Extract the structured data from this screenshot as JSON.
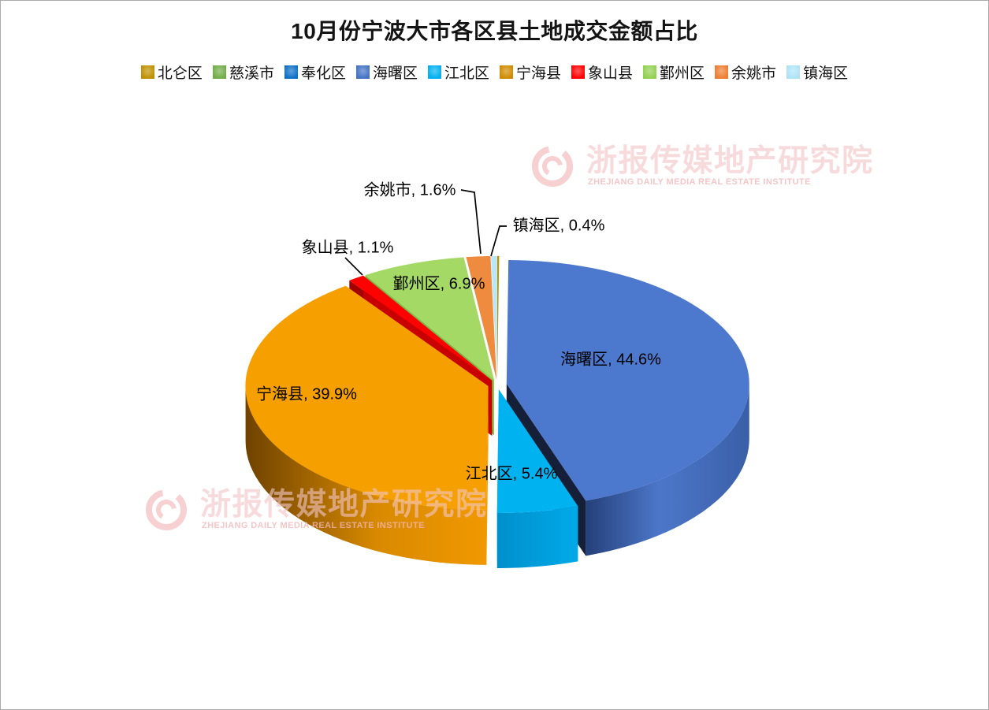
{
  "chart_data": {
    "type": "pie",
    "title": "10月份宁波大市各区县土地成交金额占比",
    "legend_position": "top",
    "effect": "3d-exploded",
    "unit": "%",
    "categories": [
      "北仑区",
      "慈溪市",
      "奉化区",
      "海曙区",
      "江北区",
      "宁海县",
      "象山县",
      "鄞州区",
      "余姚市",
      "镇海区"
    ],
    "values": [
      0,
      0,
      0,
      44.6,
      5.4,
      39.9,
      1.1,
      6.9,
      1.6,
      0.4
    ],
    "colors": [
      "#BF9000",
      "#70AD47",
      "#0D70C6",
      "#4472C4",
      "#00B0F0",
      "#D08A00",
      "#FF0000",
      "#92D050",
      "#ED7D31",
      "#AEE3F6"
    ],
    "label_format": "{category}, {value}%",
    "labeled_slices": [
      {
        "category": "海曙区",
        "value": 44.6
      },
      {
        "category": "江北区",
        "value": 5.4
      },
      {
        "category": "宁海县",
        "value": 39.9
      },
      {
        "category": "象山县",
        "value": 1.1
      },
      {
        "category": "鄞州区",
        "value": 6.9
      },
      {
        "category": "余姚市",
        "value": 1.6
      },
      {
        "category": "镇海区",
        "value": 0.4
      }
    ]
  },
  "watermark": {
    "cn": "浙报传媒地产研究院",
    "en": "ZHEJIANG DAILY MEDIA REAL ESTATE INSTITUTE"
  }
}
